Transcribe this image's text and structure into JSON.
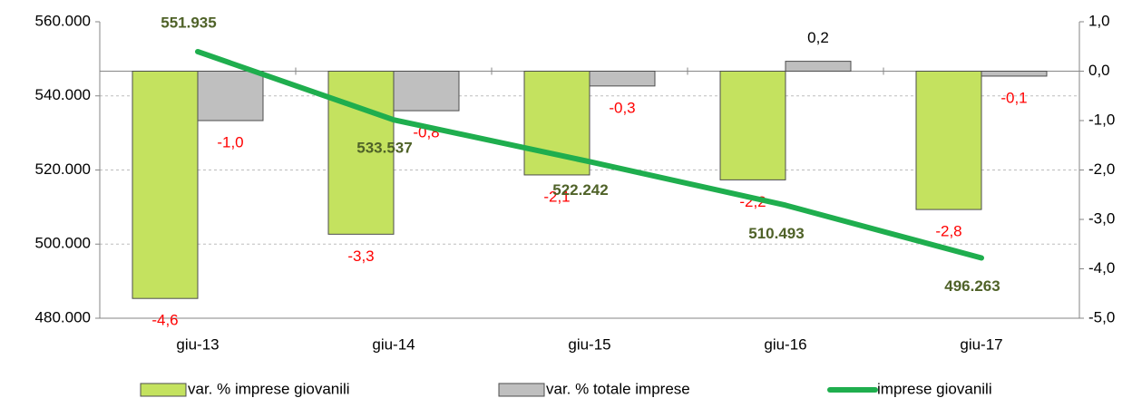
{
  "chart_data": {
    "type": "bar-line",
    "categories": [
      "giu-13",
      "giu-14",
      "giu-15",
      "giu-16",
      "giu-17"
    ],
    "series": [
      {
        "name": "var. % imprese giovanili",
        "type": "bar",
        "axis": "y2",
        "color": "#c4e25f",
        "values": [
          -4.6,
          -3.3,
          -2.1,
          -2.2,
          -2.8
        ],
        "value_labels": [
          "-4,6",
          "-3,3",
          "-2,1",
          "-2,2",
          "-2,8"
        ]
      },
      {
        "name": "var. % totale imprese",
        "type": "bar",
        "axis": "y2",
        "color": "#bfbfbf",
        "values": [
          -1.0,
          -0.8,
          -0.3,
          0.2,
          -0.1
        ],
        "value_labels": [
          "-1,0",
          "-0,8",
          "-0,3",
          "0,2",
          "-0,1"
        ]
      },
      {
        "name": "imprese giovanili",
        "type": "line",
        "axis": "y",
        "color": "#1fae4e",
        "values": [
          551935,
          533537,
          522242,
          510493,
          496263
        ],
        "value_labels": [
          "551.935",
          "533.537",
          "522.242",
          "510.493",
          "496.263"
        ]
      }
    ],
    "ylim": [
      480000,
      560000
    ],
    "yticks": [
      {
        "value": 480000,
        "label": "480.000"
      },
      {
        "value": 500000,
        "label": "500.000"
      },
      {
        "value": 520000,
        "label": "520.000"
      },
      {
        "value": 540000,
        "label": "540.000"
      },
      {
        "value": 560000,
        "label": "560.000"
      }
    ],
    "y2lim": [
      -5,
      1
    ],
    "y2ticks": [
      {
        "value": -5,
        "label": "-5,0"
      },
      {
        "value": -4,
        "label": "-4,0"
      },
      {
        "value": -3,
        "label": "-3,0"
      },
      {
        "value": -2,
        "label": "-2,0"
      },
      {
        "value": -1,
        "label": "-1,0"
      },
      {
        "value": 0,
        "label": "0,0"
      },
      {
        "value": 1,
        "label": "1,0"
      }
    ],
    "grid": true,
    "legend": "bottom"
  }
}
